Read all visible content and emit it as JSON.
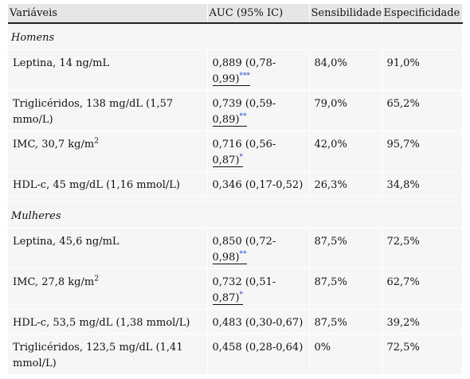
{
  "table": {
    "headers": [
      "Variáveis",
      "AUC (95% IC)",
      "Sensibilidade",
      "Especificidade"
    ],
    "groups": [
      {
        "label": "Homens",
        "rows": [
          {
            "variable": "Leptina, 14 ng/mL",
            "auc_a": "0,889 (0,78-",
            "auc_b": "0,99)",
            "fn": "***",
            "sens": "84,0%",
            "spec": "91,0%"
          },
          {
            "variable": "Triglicéridos, 138 mg/dL (1,57 mmo/L)",
            "auc_a": "0,739 (0,59-",
            "auc_b": "0,89)",
            "fn": "**",
            "sens": "79,0%",
            "spec": "65,2%"
          },
          {
            "variable": "IMC, 30,7 kg/m",
            "sup": "2",
            "auc_a": "0,716 (0,56-",
            "auc_b": "0,87)",
            "fn": "*",
            "sens": "42,0%",
            "spec": "95,7%"
          },
          {
            "variable": "HDL-c, 45 mg/dL (1,16 mmol/L)",
            "auc_a": "0,346 (0,17-0,52)",
            "sens": "26,3%",
            "spec": "34,8%"
          }
        ]
      },
      {
        "label": "Mulheres",
        "rows": [
          {
            "variable": "Leptina, 45,6 ng/mL",
            "auc_a": "0,850 (0,72-",
            "auc_b": "0,98)",
            "fn": "**",
            "sens": "87,5%",
            "spec": "72,5%"
          },
          {
            "variable": "IMC, 27,8 kg/m",
            "sup": "2",
            "auc_a": "0,732 (0,51-",
            "auc_b": "0,87)",
            "fn": "*",
            "sens": "87,5%",
            "spec": "62,7%"
          },
          {
            "variable": "HDL-c, 53,5 mg/dL (1,38 mmol/L)",
            "auc_a": "0,483 (0,30-0,67)",
            "sens": "87,5%",
            "spec": "39,2%"
          },
          {
            "variable": "Triglicéridos, 123,5 mg/dL (1,41 mmol/L)",
            "auc_a": "0,458 (0,28-0,64)",
            "sens": "0%",
            "spec": "72,5%"
          }
        ]
      }
    ]
  }
}
